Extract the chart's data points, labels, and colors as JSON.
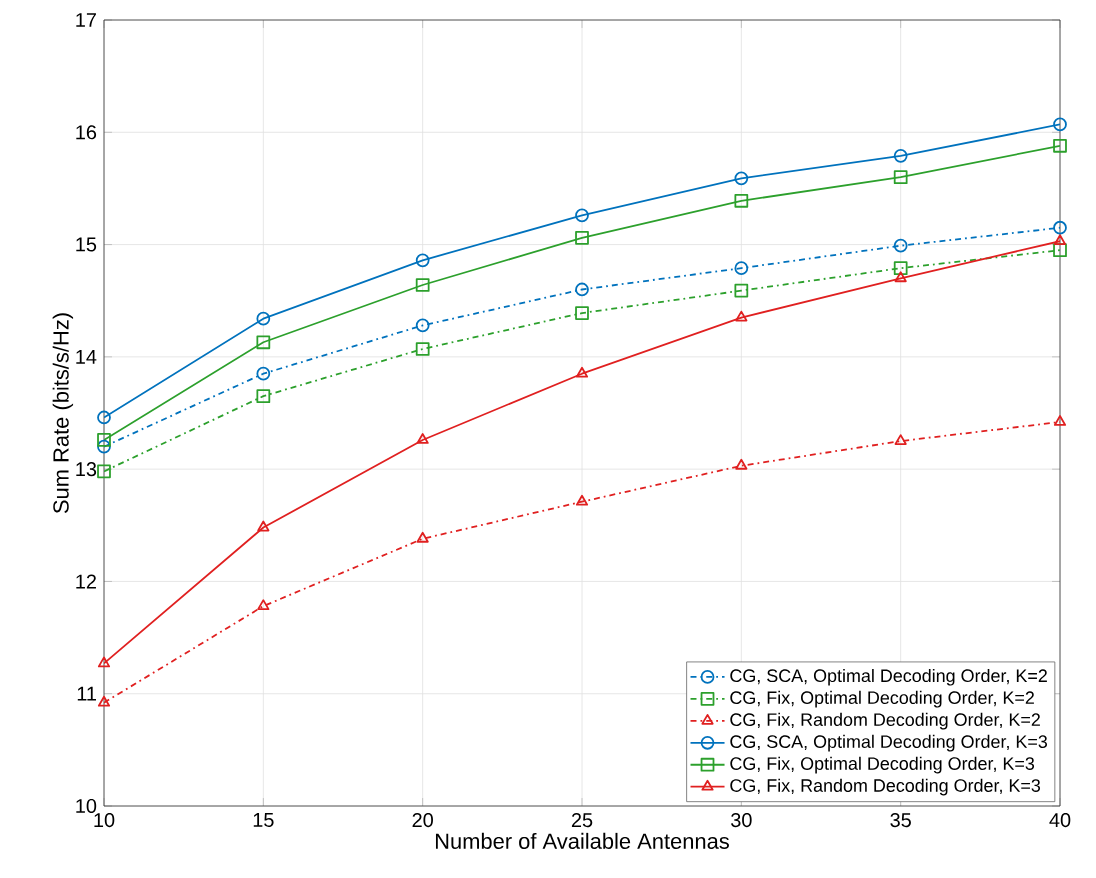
{
  "chart_data": {
    "type": "line",
    "xlabel": "Number of Available Antennas",
    "ylabel": "Sum Rate (bits/s/Hz)",
    "x": [
      10,
      15,
      20,
      25,
      30,
      35,
      40
    ],
    "series": [
      {
        "name": "CG, SCA, Optimal Decoding Order, K=2",
        "color": "#0072bd",
        "marker": "circle",
        "line_style": "dashdot",
        "values": [
          13.2,
          13.85,
          14.28,
          14.6,
          14.79,
          14.99,
          15.15
        ]
      },
      {
        "name": "CG, Fix, Optimal Decoding Order, K=2",
        "color": "#2ca02c",
        "marker": "square",
        "line_style": "dashdot",
        "values": [
          12.98,
          13.65,
          14.07,
          14.39,
          14.59,
          14.79,
          14.95
        ]
      },
      {
        "name": "CG, Fix, Random Decoding Order, K=2",
        "color": "#e02020",
        "marker": "triangle",
        "line_style": "dashdot",
        "values": [
          10.92,
          11.78,
          12.38,
          12.71,
          13.03,
          13.25,
          13.42
        ]
      },
      {
        "name": "CG, SCA, Optimal Decoding Order, K=3",
        "color": "#0072bd",
        "marker": "circle",
        "line_style": "solid",
        "values": [
          13.46,
          14.34,
          14.86,
          15.26,
          15.59,
          15.79,
          16.07
        ]
      },
      {
        "name": "CG, Fix, Optimal Decoding Order, K=3",
        "color": "#2ca02c",
        "marker": "square",
        "line_style": "solid",
        "values": [
          13.26,
          14.13,
          14.64,
          15.06,
          15.39,
          15.6,
          15.88
        ]
      },
      {
        "name": "CG, Fix, Random Decoding Order, K=3",
        "color": "#e02020",
        "marker": "triangle",
        "line_style": "solid",
        "values": [
          11.27,
          12.48,
          13.26,
          13.85,
          14.35,
          14.7,
          15.03
        ]
      }
    ],
    "xlim": [
      10,
      40
    ],
    "ylim": [
      10,
      17
    ],
    "xticks": [
      10,
      15,
      20,
      25,
      30,
      35,
      40
    ],
    "yticks": [
      10,
      11,
      12,
      13,
      14,
      15,
      16,
      17
    ],
    "grid": true,
    "legend": "bottom right"
  }
}
